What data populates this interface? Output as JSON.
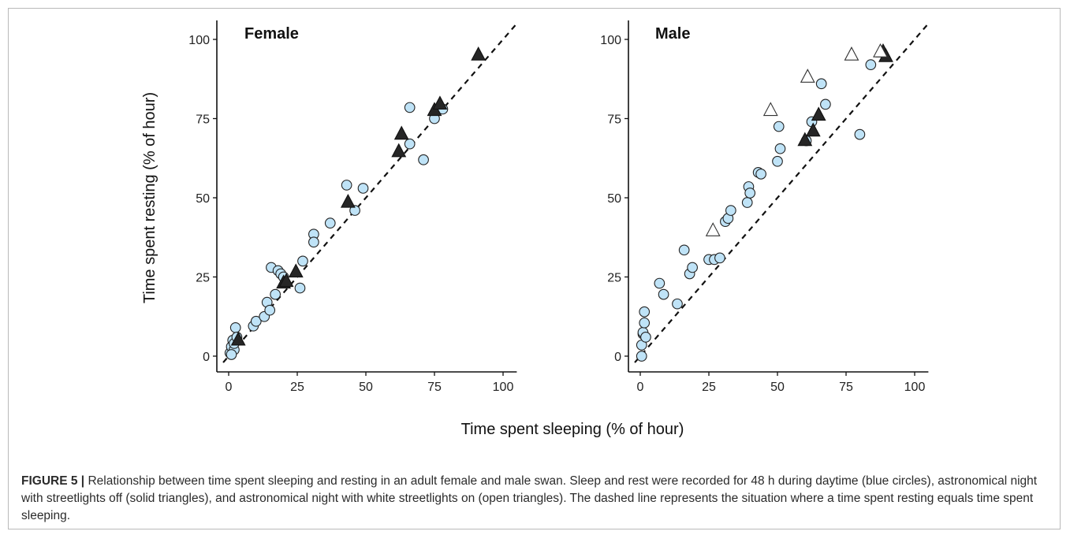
{
  "chart_data": [
    {
      "type": "scatter",
      "panel_label": "Female",
      "xlabel": "Time spent sleeping (% of hour)",
      "ylabel": "Time spent resting (% of hour)",
      "xlim": [
        -3,
        105
      ],
      "ylim": [
        -5,
        106
      ],
      "xticks": [
        "0",
        "25",
        "50",
        "75",
        "100"
      ],
      "yticks": [
        "0",
        "25",
        "50",
        "75",
        "100"
      ],
      "grid": false,
      "reference_line": {
        "style": "dashed",
        "x": [
          -2,
          105
        ],
        "y": [
          -2,
          105
        ]
      },
      "series": [
        {
          "marker": "blue-circle",
          "color": "#bfe3f7",
          "x": [
            0.5,
            1,
            1.5,
            2,
            2.5,
            1,
            2,
            3,
            9,
            10,
            13,
            14,
            15,
            15.5,
            17,
            18,
            19,
            20,
            26,
            27,
            31,
            31,
            37,
            43,
            46,
            49,
            66,
            66,
            71,
            75,
            78
          ],
          "y": [
            1,
            3,
            5,
            2,
            9,
            0.5,
            4,
            6,
            9.5,
            11,
            12.5,
            17,
            14.5,
            28,
            19.5,
            27,
            26,
            25,
            21.5,
            30,
            38.5,
            36,
            42,
            54,
            46,
            53,
            67,
            78.5,
            62,
            75,
            78
          ]
        },
        {
          "marker": "solid-triangle",
          "color": "#262626",
          "x": [
            3.5,
            20,
            21,
            24.5,
            43.5,
            62,
            63,
            75,
            77,
            91
          ],
          "y": [
            5,
            23,
            23.5,
            26.5,
            48.5,
            64.5,
            70,
            77.5,
            79.5,
            95
          ]
        }
      ]
    },
    {
      "type": "scatter",
      "panel_label": "Male",
      "xlabel": "Time spent sleeping (% of hour)",
      "ylabel": "Time spent resting (% of hour)",
      "xlim": [
        -3,
        105
      ],
      "ylim": [
        -5,
        106
      ],
      "xticks": [
        "0",
        "25",
        "50",
        "75",
        "100"
      ],
      "yticks": [
        "0",
        "25",
        "50",
        "75",
        "100"
      ],
      "grid": false,
      "reference_line": {
        "style": "dashed",
        "x": [
          -2,
          105
        ],
        "y": [
          -2,
          105
        ]
      },
      "series": [
        {
          "marker": "blue-circle",
          "color": "#bfe3f7",
          "x": [
            0.5,
            0.5,
            1,
            1,
            1.5,
            1.5,
            2,
            7,
            8.5,
            13.5,
            16,
            18,
            19,
            25,
            27,
            29,
            31,
            32,
            33,
            39,
            39.5,
            40,
            43,
            44,
            50,
            50.5,
            51,
            60.5,
            62.5,
            66,
            67.5,
            80,
            84
          ],
          "y": [
            0,
            3.5,
            7,
            7.5,
            10.5,
            14,
            6,
            23,
            19.5,
            16.5,
            33.5,
            26,
            28,
            30.5,
            30.5,
            31,
            42.5,
            43.5,
            46,
            48.5,
            53.5,
            51.5,
            58,
            57.5,
            61.5,
            72.5,
            65.5,
            68,
            74,
            86,
            79.5,
            70,
            92
          ]
        },
        {
          "marker": "solid-triangle",
          "color": "#262626",
          "x": [
            60,
            63,
            65,
            88.5,
            89.5
          ],
          "y": [
            68,
            71,
            76,
            96,
            94.5
          ]
        },
        {
          "marker": "open-triangle",
          "color": "#ffffff",
          "x": [
            26.5,
            47.5,
            61,
            77,
            87.5
          ],
          "y": [
            39.5,
            77.5,
            88,
            95,
            96
          ]
        }
      ]
    }
  ],
  "caption": {
    "label": "FIGURE 5 |",
    "text": " Relationship between time spent sleeping and resting in an adult female and male swan. Sleep and rest were recorded for 48 h during daytime (blue circles), astronomical night with streetlights off (solid triangles), and astronomical night with white streetlights on (open triangles). The dashed line represents the situation where a time spent resting equals time spent sleeping."
  }
}
